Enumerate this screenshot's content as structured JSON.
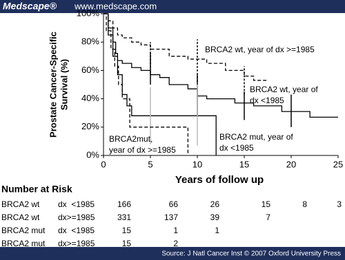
{
  "header": {
    "logo": "Medscape®",
    "url": "www.medscape.com"
  },
  "chart_data": {
    "type": "line",
    "step": "post",
    "ylabel": [
      "Prostate Cancer-Specific",
      "Survival (%)"
    ],
    "xlabel": "Years of follow up",
    "xlim": [
      0,
      25
    ],
    "xticks": [
      0,
      5,
      10,
      15,
      20,
      25
    ],
    "ylim": [
      0,
      100
    ],
    "yticks": [
      {
        "value": 0,
        "label": "0%"
      },
      {
        "value": 20,
        "label": "20%"
      },
      {
        "value": 40,
        "label": "40%"
      },
      {
        "value": 60,
        "label": "60%"
      },
      {
        "value": 80,
        "label": "80%"
      },
      {
        "value": 100,
        "label": "100%"
      }
    ],
    "series": [
      {
        "name": "BRCA2 wt, year of dx <1985",
        "color": "#000000",
        "dashed": false,
        "ci_color": "#000000",
        "x": [
          0,
          0.5,
          1,
          1.3,
          1.5,
          2,
          3,
          4,
          5,
          6,
          7,
          9,
          10,
          11,
          14,
          16,
          19,
          22,
          25
        ],
        "values": [
          100,
          90,
          80,
          72,
          67,
          65,
          62,
          60,
          57,
          55,
          50,
          47,
          42,
          40,
          37,
          35,
          31,
          27,
          27
        ],
        "ci": {
          "x": [
            5,
            10,
            15,
            20
          ],
          "low": [
            50,
            28,
            25,
            20
          ],
          "high": [
            73,
            57,
            45,
            43
          ]
        }
      },
      {
        "name": "BRCA2 wt, year of dx >=1985",
        "color": "#000000",
        "dashed": true,
        "ci_color": "#000000",
        "x": [
          0,
          0.5,
          1,
          1.5,
          2,
          3,
          4,
          5,
          7,
          9,
          11,
          13,
          15,
          16,
          17.5
        ],
        "values": [
          100,
          95,
          90,
          85,
          83,
          80,
          78,
          75,
          70,
          68,
          65,
          60,
          56,
          53,
          53
        ],
        "ci": {
          "x": [
            5,
            10,
            15
          ],
          "low": [
            62,
            52,
            43
          ],
          "high": [
            80,
            82,
            63
          ]
        }
      },
      {
        "name": "BRCA2 mut, year of dx <1985",
        "color": "#000000",
        "dashed": false,
        "ci_color": "#bbbbbb",
        "x": [
          0,
          0.5,
          1,
          1.5,
          2,
          2.5,
          3,
          12,
          12
        ],
        "values": [
          100,
          85,
          70,
          57,
          43,
          35,
          28,
          28,
          0
        ],
        "ci": {
          "x": [
            5,
            10
          ],
          "low": [
            8,
            7
          ],
          "high": [
            48,
            50
          ]
        }
      },
      {
        "name": "BRCA2mut, year of dx >=1985",
        "color": "#000000",
        "dashed": true,
        "ci_color": "#000000",
        "x": [
          0,
          0.3,
          0.8,
          1.2,
          1.6,
          2,
          2.8,
          9,
          9
        ],
        "values": [
          100,
          88,
          75,
          63,
          50,
          40,
          20,
          20,
          0
        ],
        "ci": {
          "x": [],
          "low": [],
          "high": []
        }
      }
    ],
    "annotations": [
      [
        "BRCA2 wt, year of dx >=1985"
      ],
      [
        "BRCA2 wt, year of",
        "dx <1985"
      ],
      [
        "BRCA2mut,",
        "year of dx >=1985"
      ],
      [
        "BRCA2 mut, year of",
        "dx <1985"
      ]
    ]
  },
  "risk_table": {
    "title": "Number at Risk",
    "rows": [
      {
        "group": "BRCA2 wt",
        "subgroup": "dx  <1985",
        "counts": [
          166,
          66,
          26,
          15,
          8,
          3
        ]
      },
      {
        "group": "BRCA2 wt",
        "subgroup": "dx>=1985",
        "counts": [
          331,
          137,
          39,
          7
        ]
      },
      {
        "group": "BRCA2 mut",
        "subgroup": "dx  <1985",
        "counts": [
          15,
          1,
          1
        ]
      },
      {
        "group": "BRCA2 mut",
        "subgroup": "dx>=1985",
        "counts": [
          15,
          2
        ]
      }
    ]
  },
  "footer": {
    "source": "Source: J Natl Cancer Inst © 2007 Oxford University Press"
  }
}
